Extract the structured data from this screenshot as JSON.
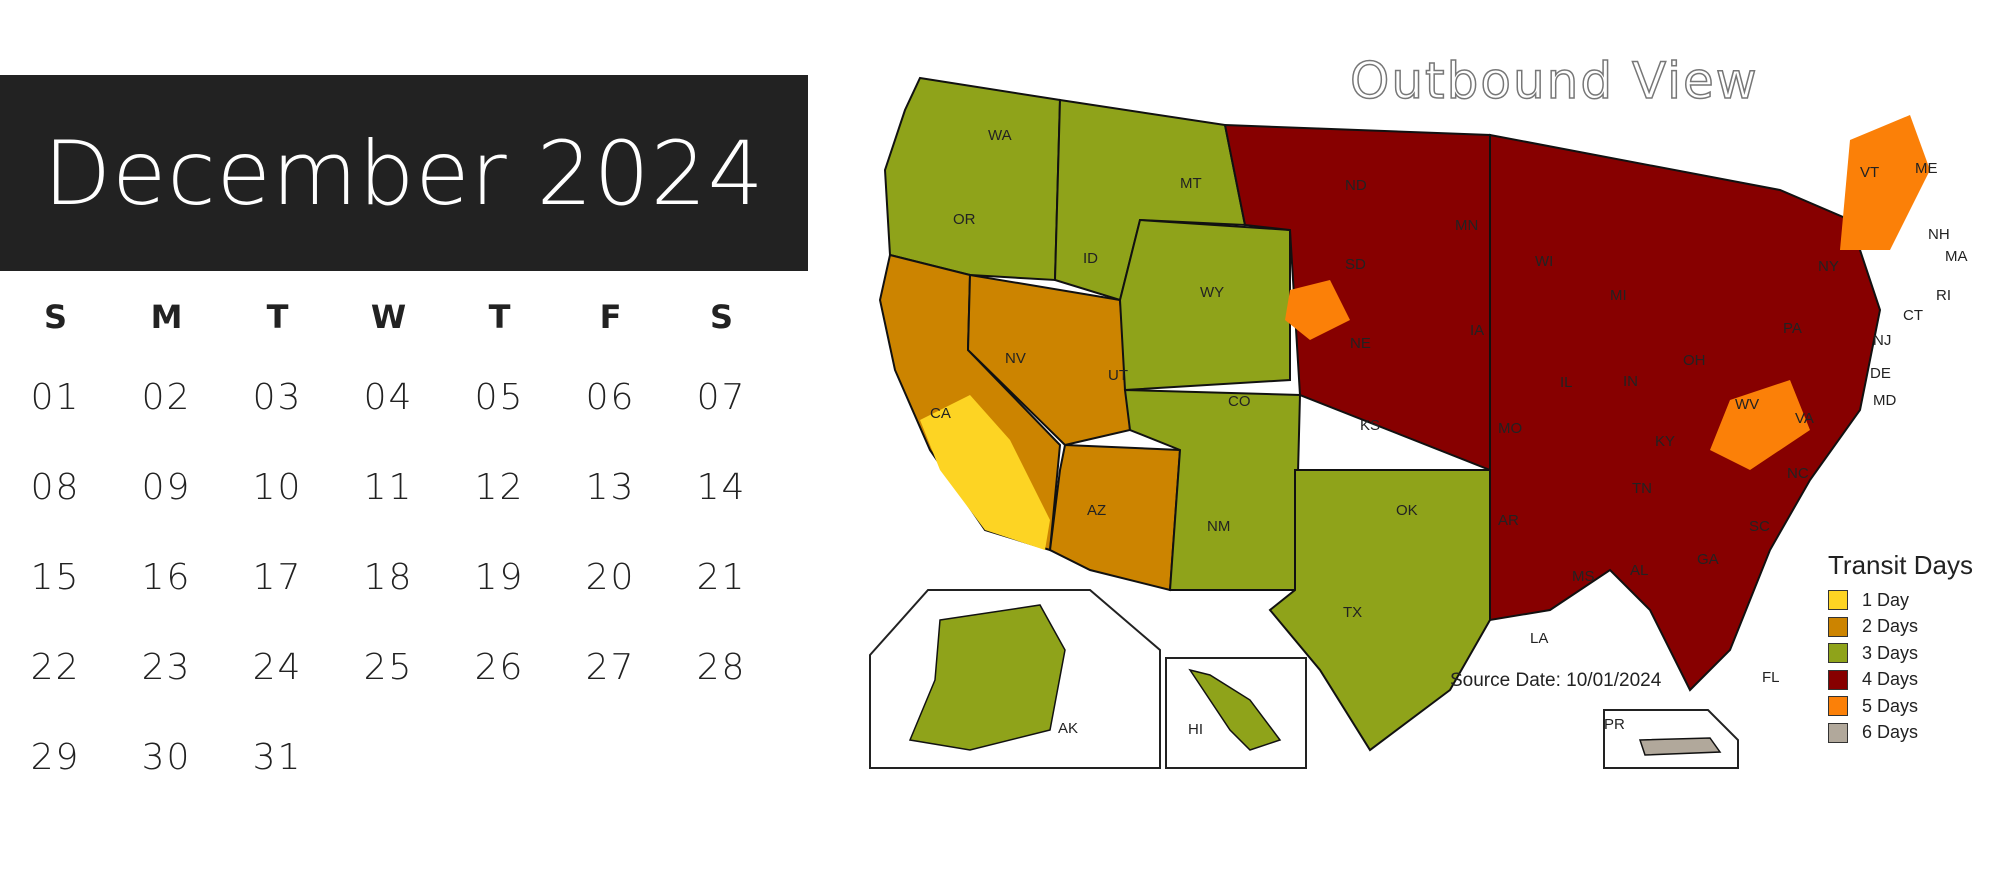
{
  "calendar": {
    "title": "December 2024",
    "weekdays": [
      "S",
      "M",
      "T",
      "W",
      "T",
      "F",
      "S"
    ],
    "weeks": [
      [
        "01",
        "02",
        "03",
        "04",
        "05",
        "06",
        "07"
      ],
      [
        "08",
        "09",
        "10",
        "11",
        "12",
        "13",
        "14"
      ],
      [
        "15",
        "16",
        "17",
        "18",
        "19",
        "20",
        "21"
      ],
      [
        "22",
        "23",
        "24",
        "25",
        "26",
        "27",
        "28"
      ],
      [
        "29",
        "30",
        "31",
        "",
        "",
        "",
        ""
      ]
    ]
  },
  "map": {
    "title": "Outbound View",
    "source_date": "Source Date: 10/01/2024",
    "state_labels": {
      "WA": "WA",
      "OR": "OR",
      "CA": "CA",
      "NV": "NV",
      "ID": "ID",
      "MT": "MT",
      "WY": "WY",
      "UT": "UT",
      "AZ": "AZ",
      "CO": "CO",
      "NM": "NM",
      "ND": "ND",
      "SD": "SD",
      "NE": "NE",
      "KS": "KS",
      "OK": "OK",
      "TX": "TX",
      "MN": "MN",
      "IA": "IA",
      "MO": "MO",
      "AR": "AR",
      "LA": "LA",
      "WI": "WI",
      "IL": "IL",
      "MI": "MI",
      "IN": "IN",
      "OH": "OH",
      "KY": "KY",
      "TN": "TN",
      "MS": "MS",
      "AL": "AL",
      "GA": "GA",
      "FL": "FL",
      "SC": "SC",
      "NC": "NC",
      "VA": "VA",
      "WV": "WV",
      "PA": "PA",
      "NY": "NY",
      "VT": "VT",
      "ME": "ME",
      "NH": "NH",
      "MA": "MA",
      "RI": "RI",
      "CT": "CT",
      "NJ": "NJ",
      "DE": "DE",
      "MD": "MD",
      "AK": "AK",
      "HI": "HI",
      "PR": "PR"
    },
    "legend": {
      "title": "Transit Days",
      "items": [
        {
          "label": "1 Day",
          "color": "#fdd423"
        },
        {
          "label": "2 Days",
          "color": "#cc8400"
        },
        {
          "label": "3 Days",
          "color": "#8fa31a"
        },
        {
          "label": "4 Days",
          "color": "#870000"
        },
        {
          "label": "5 Days",
          "color": "#fb8008"
        },
        {
          "label": "6 Days",
          "color": "#b1a89b"
        }
      ]
    }
  }
}
